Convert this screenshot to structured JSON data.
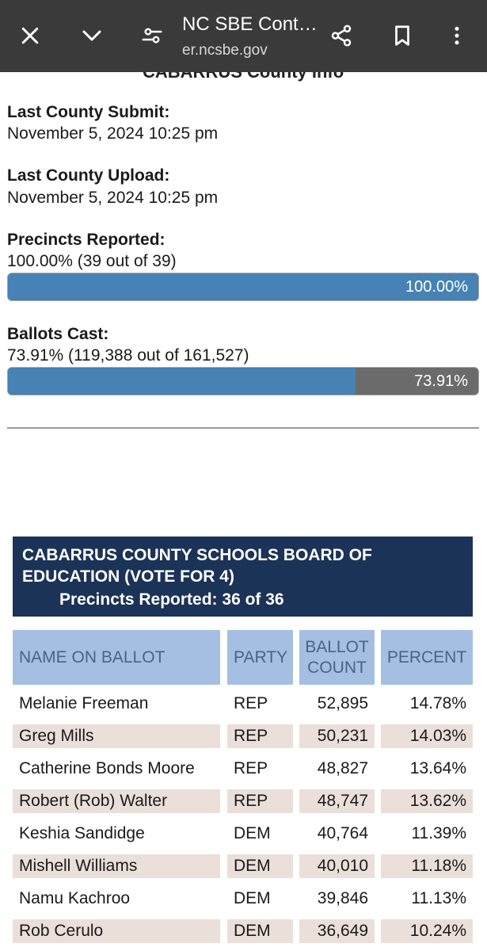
{
  "browser": {
    "title": "NC SBE Cont…",
    "url": "er.ncsbe.gov",
    "icons": [
      "close-icon",
      "chevron-down-icon",
      "tune-icon",
      "share-icon",
      "bookmark-icon",
      "more-vert-icon"
    ]
  },
  "county": {
    "heading": "CABARRUS County Info",
    "last_submit_label": "Last County Submit:",
    "last_submit_value": "November 5, 2024 10:25 pm",
    "last_upload_label": "Last County Upload:",
    "last_upload_value": "November 5, 2024 10:25 pm",
    "precincts_label": "Precincts Reported:",
    "precincts_value": "100.00% (39 out of 39)",
    "precincts_bar_text": "100.00%",
    "precincts_fraction": 1.0,
    "ballots_label": "Ballots Cast:",
    "ballots_value": "73.91% (119,388 out of 161,527)",
    "ballots_bar_text": "73.91%",
    "ballots_fraction": 0.7391
  },
  "colors": {
    "topbar": "#3a3a3a",
    "bar_fill": "#4682b4",
    "bar_remaining": "#6b6b6b",
    "contest_header": "#1b3357",
    "table_header": "#a4bfe1",
    "table_header_text": "#4b6385",
    "alt_row": "#eadfd9"
  },
  "contest": {
    "title": "CABARRUS COUNTY SCHOOLS BOARD OF EDUCATION (VOTE FOR 4)",
    "precincts": "Precincts Reported: 36 of 36"
  },
  "table": {
    "headers": {
      "name": "NAME ON BALLOT",
      "party": "PARTY",
      "count_line1": "BALLOT",
      "count_line2": "COUNT",
      "percent": "PERCENT"
    },
    "rows": [
      {
        "name": "Melanie Freeman",
        "party": "REP",
        "count": "52,895",
        "percent": "14.78%"
      },
      {
        "name": "Greg Mills",
        "party": "REP",
        "count": "50,231",
        "percent": "14.03%"
      },
      {
        "name": "Catherine Bonds Moore",
        "party": "REP",
        "count": "48,827",
        "percent": "13.64%"
      },
      {
        "name": "Robert (Rob) Walter",
        "party": "REP",
        "count": "48,747",
        "percent": "13.62%"
      },
      {
        "name": "Keshia Sandidge",
        "party": "DEM",
        "count": "40,764",
        "percent": "11.39%"
      },
      {
        "name": "Mishell Williams",
        "party": "DEM",
        "count": "40,010",
        "percent": "11.18%"
      },
      {
        "name": "Namu Kachroo",
        "party": "DEM",
        "count": "39,846",
        "percent": "11.13%"
      },
      {
        "name": "Rob Cerulo",
        "party": "DEM",
        "count": "36,649",
        "percent": "10.24%"
      }
    ]
  }
}
